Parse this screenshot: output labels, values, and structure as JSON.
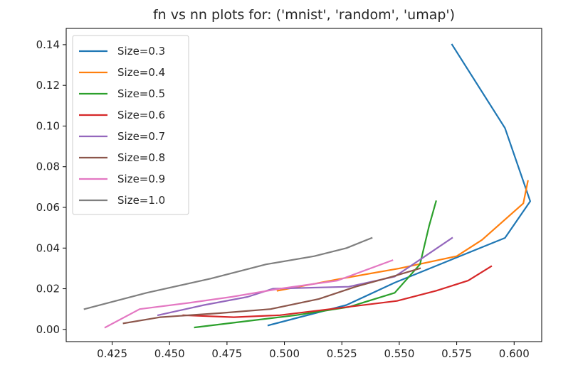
{
  "chart_data": {
    "type": "line",
    "title": "fn vs nn plots for: ('mnist', 'random', 'umap')",
    "xlabel": "",
    "ylabel": "",
    "xlim": [
      0.405,
      0.612
    ],
    "ylim": [
      -0.006,
      0.148
    ],
    "xticks": [
      0.425,
      0.45,
      0.475,
      0.5,
      0.525,
      0.55,
      0.575,
      0.6
    ],
    "xtick_labels": [
      "0.425",
      "0.450",
      "0.475",
      "0.500",
      "0.525",
      "0.550",
      "0.575",
      "0.600"
    ],
    "yticks": [
      0.0,
      0.02,
      0.04,
      0.06,
      0.08,
      0.1,
      0.12,
      0.14
    ],
    "ytick_labels": [
      "0.00",
      "0.02",
      "0.04",
      "0.06",
      "0.08",
      "0.10",
      "0.12",
      "0.14"
    ],
    "grid": false,
    "legend_position": "top-left",
    "series": [
      {
        "name": "Size=0.3",
        "color": "#1f77b4",
        "x": [
          0.493,
          0.527,
          0.548,
          0.572,
          0.596,
          0.607,
          0.596,
          0.573
        ],
        "y": [
          0.002,
          0.012,
          0.023,
          0.034,
          0.045,
          0.063,
          0.099,
          0.14
        ]
      },
      {
        "name": "Size=0.4",
        "color": "#ff7f0e",
        "x": [
          0.497,
          0.525,
          0.55,
          0.575,
          0.586,
          0.604,
          0.606
        ],
        "y": [
          0.019,
          0.025,
          0.03,
          0.036,
          0.044,
          0.062,
          0.073
        ]
      },
      {
        "name": "Size=0.5",
        "color": "#2ca02c",
        "x": [
          0.461,
          0.483,
          0.505,
          0.528,
          0.548,
          0.559,
          0.563,
          0.566
        ],
        "y": [
          0.001,
          0.004,
          0.007,
          0.011,
          0.018,
          0.032,
          0.051,
          0.063
        ]
      },
      {
        "name": "Size=0.6",
        "color": "#d62728",
        "x": [
          0.456,
          0.478,
          0.498,
          0.52,
          0.549,
          0.566,
          0.58,
          0.59
        ],
        "y": [
          0.007,
          0.006,
          0.007,
          0.01,
          0.014,
          0.019,
          0.024,
          0.031
        ]
      },
      {
        "name": "Size=0.7",
        "color": "#9467bd",
        "x": [
          0.445,
          0.465,
          0.484,
          0.495,
          0.528,
          0.548,
          0.556,
          0.573
        ],
        "y": [
          0.007,
          0.012,
          0.016,
          0.02,
          0.021,
          0.026,
          0.032,
          0.045
        ]
      },
      {
        "name": "Size=0.8",
        "color": "#8c564b",
        "x": [
          0.43,
          0.446,
          0.472,
          0.494,
          0.515,
          0.531,
          0.547,
          0.559
        ],
        "y": [
          0.003,
          0.006,
          0.008,
          0.01,
          0.015,
          0.021,
          0.026,
          0.03
        ]
      },
      {
        "name": "Size=0.9",
        "color": "#e377c2",
        "x": [
          0.422,
          0.437,
          0.458,
          0.477,
          0.498,
          0.523,
          0.547
        ],
        "y": [
          0.001,
          0.01,
          0.013,
          0.016,
          0.02,
          0.024,
          0.034
        ]
      },
      {
        "name": "Size=1.0",
        "color": "#7f7f7f",
        "x": [
          0.413,
          0.44,
          0.468,
          0.492,
          0.513,
          0.527,
          0.538
        ],
        "y": [
          0.01,
          0.018,
          0.025,
          0.032,
          0.036,
          0.04,
          0.045
        ]
      }
    ]
  }
}
